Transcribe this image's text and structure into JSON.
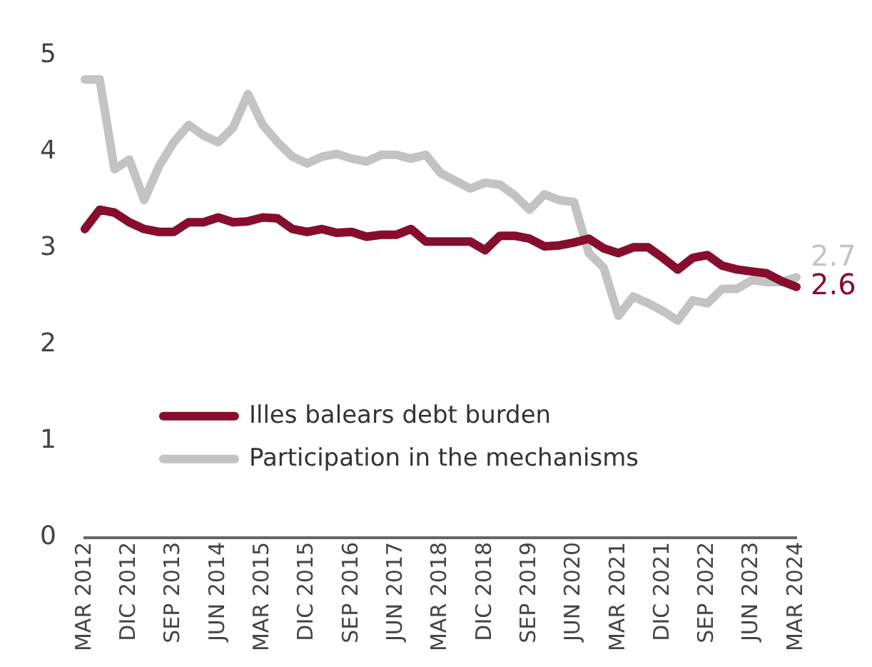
{
  "chart_data": {
    "type": "line",
    "categories": [
      "MAR 2012",
      null,
      null,
      "DIC 2012",
      null,
      null,
      "SEP 2013",
      null,
      null,
      "JUN 2014",
      null,
      null,
      "MAR 2015",
      null,
      null,
      "DIC 2015",
      null,
      null,
      "SEP 2016",
      null,
      null,
      "JUN 2017",
      null,
      null,
      "MAR 2018",
      null,
      null,
      "DIC 2018",
      null,
      null,
      "SEP 2019",
      null,
      null,
      "JUN 2020",
      null,
      null,
      "MAR 2021",
      null,
      null,
      "DIC 2021",
      null,
      null,
      "SEP 2022",
      null,
      null,
      "JUN 2023",
      null,
      null,
      "MAR 2024"
    ],
    "series": [
      {
        "name": "Illes balears debt burden",
        "color": "#870d2e",
        "values": [
          3.2,
          3.4,
          3.37,
          3.27,
          3.2,
          3.17,
          3.17,
          3.27,
          3.27,
          3.32,
          3.27,
          3.28,
          3.32,
          3.31,
          3.2,
          3.17,
          3.2,
          3.16,
          3.17,
          3.12,
          3.14,
          3.14,
          3.2,
          3.07,
          3.07,
          3.07,
          3.07,
          2.98,
          3.13,
          3.13,
          3.1,
          3.02,
          3.03,
          3.06,
          3.1,
          3.0,
          2.95,
          3.01,
          3.01,
          2.9,
          2.78,
          2.9,
          2.93,
          2.82,
          2.78,
          2.76,
          2.74,
          2.66,
          2.6
        ],
        "value_labels": [
          null,
          null,
          null,
          null,
          null,
          null,
          null,
          null,
          null,
          null,
          null,
          null,
          null,
          null,
          null,
          null,
          null,
          null,
          null,
          null,
          null,
          null,
          null,
          null,
          null,
          null,
          null,
          null,
          null,
          null,
          null,
          null,
          null,
          null,
          null,
          null,
          null,
          null,
          null,
          null,
          null,
          null,
          null,
          null,
          null,
          null,
          null,
          null,
          "2.6"
        ]
      },
      {
        "name": "Participation in the mechanisms",
        "color": "#c3c3c3",
        "values": [
          4.75,
          4.75,
          3.82,
          3.92,
          3.5,
          3.85,
          4.1,
          4.28,
          4.17,
          4.1,
          4.25,
          4.6,
          4.28,
          4.1,
          3.95,
          3.88,
          3.95,
          3.98,
          3.93,
          3.9,
          3.97,
          3.97,
          3.93,
          3.97,
          3.78,
          3.7,
          3.62,
          3.68,
          3.66,
          3.55,
          3.4,
          3.56,
          3.5,
          3.48,
          2.95,
          2.8,
          2.3,
          2.5,
          2.43,
          2.35,
          2.25,
          2.46,
          2.43,
          2.58,
          2.58,
          2.67,
          2.65,
          2.65,
          2.7
        ],
        "value_labels": [
          null,
          null,
          null,
          null,
          null,
          null,
          null,
          null,
          null,
          null,
          null,
          null,
          null,
          null,
          null,
          null,
          null,
          null,
          null,
          null,
          null,
          null,
          null,
          null,
          null,
          null,
          null,
          null,
          null,
          null,
          null,
          null,
          null,
          null,
          null,
          null,
          null,
          null,
          null,
          null,
          null,
          null,
          null,
          null,
          null,
          null,
          null,
          null,
          "2.7"
        ]
      }
    ],
    "ylim": [
      0,
      5
    ],
    "yticks": [
      0,
      1,
      2,
      3,
      4,
      5
    ],
    "grid": false,
    "legend": "bottom left",
    "marker": "none",
    "line_style": "solid"
  }
}
